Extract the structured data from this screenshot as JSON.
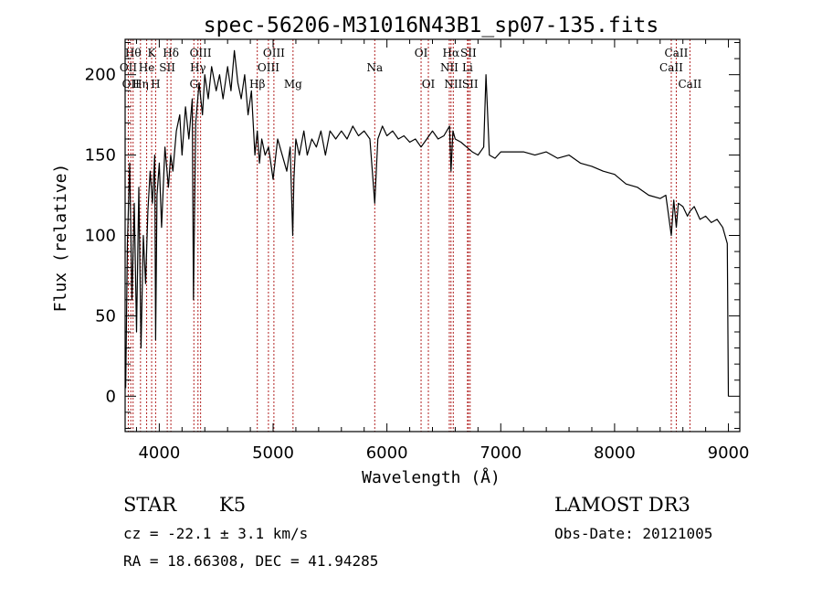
{
  "chart_data": {
    "type": "line",
    "title": "spec-56206-M31016N43B1_sp07-135.fits",
    "xlabel": "Wavelength (Å)",
    "ylabel": "Flux (relative)",
    "xlim": [
      3700,
      9100
    ],
    "ylim": [
      -22,
      222
    ],
    "xticks": [
      4000,
      5000,
      6000,
      7000,
      8000,
      9000
    ],
    "xtick_labels": [
      "4000",
      "5000",
      "6000",
      "7000",
      "8000",
      "9000"
    ],
    "yticks": [
      0,
      50,
      100,
      150,
      200
    ],
    "ytick_labels": [
      "0",
      "50",
      "100",
      "150",
      "200"
    ],
    "grid": false,
    "series": [
      {
        "name": "spectrum",
        "x": [
          3705,
          3720,
          3740,
          3760,
          3780,
          3800,
          3820,
          3840,
          3860,
          3880,
          3900,
          3920,
          3940,
          3960,
          3968,
          3980,
          4000,
          4020,
          4050,
          4080,
          4100,
          4120,
          4150,
          4180,
          4200,
          4230,
          4260,
          4290,
          4300,
          4320,
          4350,
          4380,
          4400,
          4430,
          4460,
          4500,
          4530,
          4560,
          4600,
          4630,
          4660,
          4690,
          4720,
          4750,
          4780,
          4810,
          4840,
          4861,
          4880,
          4900,
          4930,
          4960,
          5000,
          5040,
          5080,
          5120,
          5150,
          5172,
          5183,
          5200,
          5230,
          5270,
          5300,
          5340,
          5380,
          5420,
          5460,
          5500,
          5550,
          5600,
          5650,
          5700,
          5750,
          5800,
          5850,
          5893,
          5920,
          5960,
          6000,
          6050,
          6100,
          6150,
          6200,
          6250,
          6300,
          6350,
          6400,
          6450,
          6500,
          6550,
          6563,
          6580,
          6600,
          6650,
          6700,
          6750,
          6800,
          6850,
          6870,
          6900,
          6950,
          7000,
          7100,
          7200,
          7300,
          7400,
          7500,
          7600,
          7700,
          7800,
          7900,
          8000,
          8100,
          8200,
          8300,
          8400,
          8450,
          8498,
          8520,
          8542,
          8560,
          8600,
          8640,
          8662,
          8700,
          8750,
          8800,
          8850,
          8900,
          8950,
          8990,
          9000,
          9002
        ],
        "values": [
          5,
          95,
          145,
          60,
          120,
          40,
          130,
          30,
          100,
          70,
          115,
          140,
          120,
          150,
          35,
          125,
          145,
          105,
          155,
          130,
          150,
          140,
          165,
          175,
          150,
          180,
          160,
          185,
          60,
          170,
          195,
          175,
          200,
          185,
          205,
          190,
          200,
          185,
          205,
          190,
          215,
          195,
          185,
          200,
          175,
          190,
          150,
          165,
          145,
          160,
          150,
          155,
          135,
          160,
          150,
          140,
          155,
          100,
          135,
          160,
          150,
          165,
          150,
          160,
          155,
          165,
          150,
          165,
          160,
          165,
          160,
          168,
          162,
          165,
          160,
          120,
          160,
          168,
          162,
          165,
          160,
          162,
          158,
          160,
          155,
          160,
          165,
          160,
          162,
          168,
          140,
          165,
          160,
          158,
          155,
          152,
          150,
          155,
          200,
          150,
          148,
          152,
          152,
          152,
          150,
          152,
          148,
          150,
          145,
          143,
          140,
          138,
          132,
          130,
          125,
          123,
          125,
          100,
          122,
          105,
          120,
          118,
          112,
          115,
          118,
          110,
          112,
          108,
          110,
          105,
          95,
          0,
          0
        ]
      }
    ],
    "line_markers": [
      {
        "wavelength": 3728,
        "label": "OII",
        "row": 2
      },
      {
        "wavelength": 3750,
        "label": "OII",
        "row": 3
      },
      {
        "wavelength": 3770,
        "label": "Hθ",
        "row": 1
      },
      {
        "wavelength": 3835,
        "label": "Hη",
        "row": 3
      },
      {
        "wavelength": 3889,
        "label": "He",
        "row": 2
      },
      {
        "wavelength": 3933,
        "label": "K",
        "row": 1
      },
      {
        "wavelength": 3968,
        "label": "H",
        "row": 3
      },
      {
        "wavelength": 4070,
        "label": "SII",
        "row": 2
      },
      {
        "wavelength": 4102,
        "label": "Hδ",
        "row": 1
      },
      {
        "wavelength": 4304,
        "label": "G",
        "row": 3
      },
      {
        "wavelength": 4340,
        "label": "Hγ",
        "row": 2
      },
      {
        "wavelength": 4363,
        "label": "OIII",
        "row": 1
      },
      {
        "wavelength": 4861,
        "label": "Hβ",
        "row": 3
      },
      {
        "wavelength": 4959,
        "label": "OIII",
        "row": 2
      },
      {
        "wavelength": 5007,
        "label": "OIII",
        "row": 1
      },
      {
        "wavelength": 5175,
        "label": "Mg",
        "row": 3
      },
      {
        "wavelength": 5893,
        "label": "Na",
        "row": 2
      },
      {
        "wavelength": 6300,
        "label": "OI",
        "row": 1
      },
      {
        "wavelength": 6364,
        "label": "OI",
        "row": 3
      },
      {
        "wavelength": 6548,
        "label": "NII",
        "row": 2
      },
      {
        "wavelength": 6563,
        "label": "Hα",
        "row": 1
      },
      {
        "wavelength": 6583,
        "label": "NII",
        "row": 3
      },
      {
        "wavelength": 6708,
        "label": "Li",
        "row": 2
      },
      {
        "wavelength": 6716,
        "label": "SII",
        "row": 1
      },
      {
        "wavelength": 6731,
        "label": "SII",
        "row": 3
      },
      {
        "wavelength": 8498,
        "label": "CaII",
        "row": 2
      },
      {
        "wavelength": 8542,
        "label": "CaII",
        "row": 1
      },
      {
        "wavelength": 8662,
        "label": "CaII",
        "row": 3
      }
    ]
  },
  "info": {
    "class_label": "STAR",
    "subclass_label": "K5",
    "survey_label": "LAMOST DR3",
    "cz_text": "cz = -22.1 ± 3.1 km/s",
    "obs_date_text": "Obs-Date: 20121005",
    "coords_text": "RA =  18.66308, DEC =  41.94285"
  },
  "colors": {
    "spectrum": "#000000",
    "marker_line": "#b22222",
    "axes": "#000000"
  }
}
